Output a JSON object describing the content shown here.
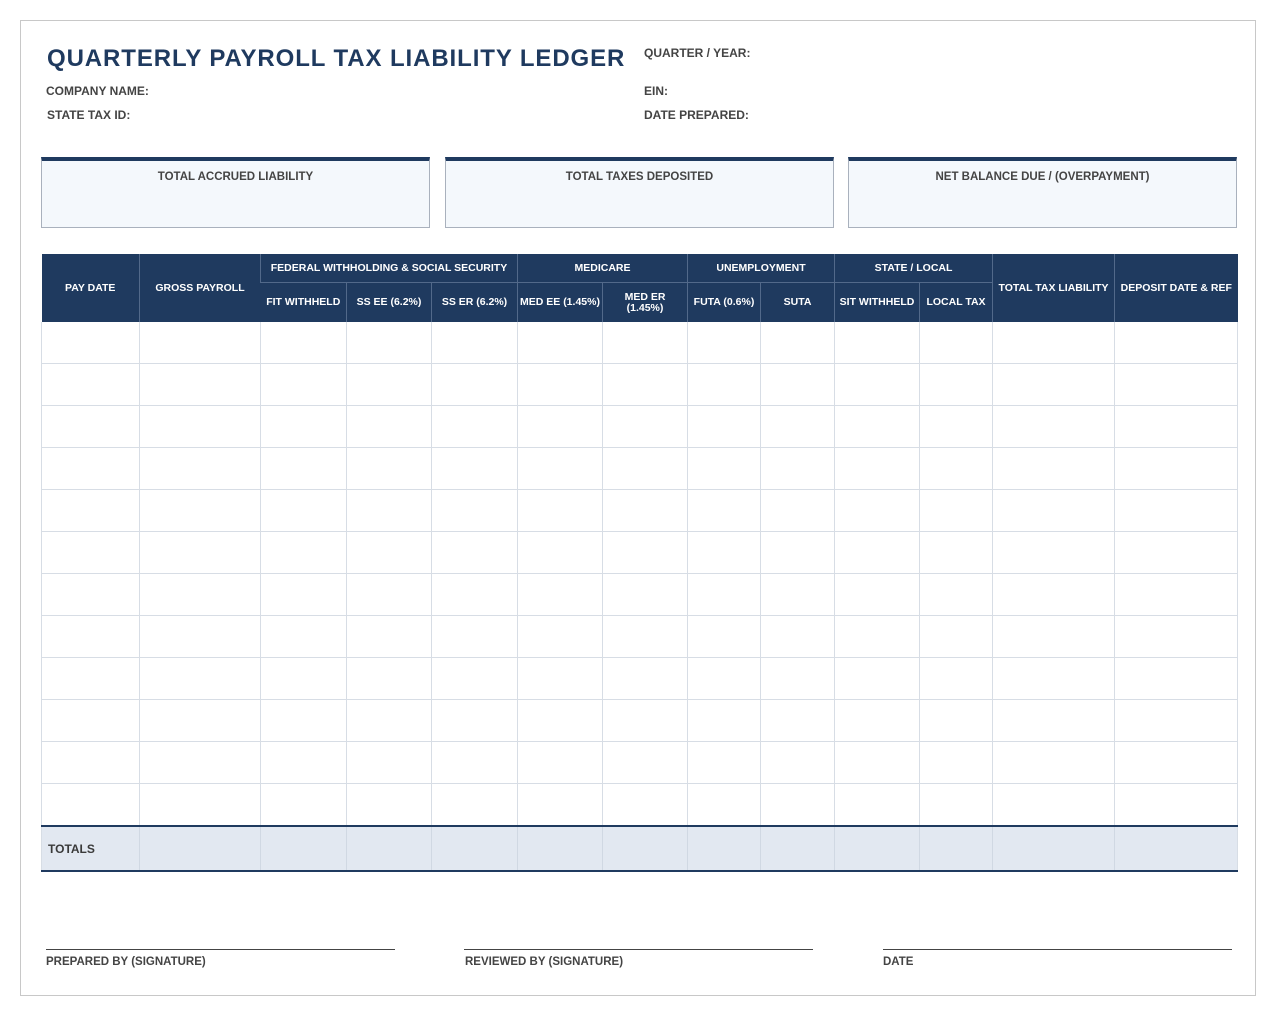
{
  "title": "QUARTERLY PAYROLL TAX LIABILITY LEDGER",
  "header_fields": {
    "quarter_year": "QUARTER / YEAR:",
    "company_name": "COMPANY NAME:",
    "ein": "EIN:",
    "state_tax_id": "STATE TAX ID:",
    "date_prepared": "DATE PREPARED:"
  },
  "summary_boxes": [
    {
      "label": "TOTAL ACCRUED LIABILITY",
      "value": ""
    },
    {
      "label": "TOTAL TAXES DEPOSITED",
      "value": ""
    },
    {
      "label": "NET BALANCE DUE / (OVERPAYMENT)",
      "value": ""
    }
  ],
  "table": {
    "groups": {
      "pay_date": "PAY DATE",
      "gross_payroll": "GROSS PAYROLL",
      "federal": "FEDERAL WITHHOLDING & SOCIAL SECURITY",
      "medicare": "MEDICARE",
      "unemployment": "UNEMPLOYMENT",
      "state_local": "STATE / LOCAL",
      "total_tax_liability": "TOTAL TAX LIABILITY",
      "deposit_date_ref": "DEPOSIT DATE & REF"
    },
    "subcolumns": {
      "fit_withheld": "FIT WITHHELD",
      "ss_ee": "SS EE (6.2%)",
      "ss_er": "SS ER (6.2%)",
      "med_ee": "MED EE (1.45%)",
      "med_er": "MED ER (1.45%)",
      "futa": "FUTA (0.6%)",
      "suta": "SUTA",
      "sit_withheld": "SIT WITHHELD",
      "local_tax": "LOCAL TAX"
    },
    "rows": [
      [
        "",
        "",
        "",
        "",
        "",
        "",
        "",
        "",
        "",
        "",
        "",
        "",
        ""
      ],
      [
        "",
        "",
        "",
        "",
        "",
        "",
        "",
        "",
        "",
        "",
        "",
        "",
        ""
      ],
      [
        "",
        "",
        "",
        "",
        "",
        "",
        "",
        "",
        "",
        "",
        "",
        "",
        ""
      ],
      [
        "",
        "",
        "",
        "",
        "",
        "",
        "",
        "",
        "",
        "",
        "",
        "",
        ""
      ],
      [
        "",
        "",
        "",
        "",
        "",
        "",
        "",
        "",
        "",
        "",
        "",
        "",
        ""
      ],
      [
        "",
        "",
        "",
        "",
        "",
        "",
        "",
        "",
        "",
        "",
        "",
        "",
        ""
      ],
      [
        "",
        "",
        "",
        "",
        "",
        "",
        "",
        "",
        "",
        "",
        "",
        "",
        ""
      ],
      [
        "",
        "",
        "",
        "",
        "",
        "",
        "",
        "",
        "",
        "",
        "",
        "",
        ""
      ],
      [
        "",
        "",
        "",
        "",
        "",
        "",
        "",
        "",
        "",
        "",
        "",
        "",
        ""
      ],
      [
        "",
        "",
        "",
        "",
        "",
        "",
        "",
        "",
        "",
        "",
        "",
        "",
        ""
      ],
      [
        "",
        "",
        "",
        "",
        "",
        "",
        "",
        "",
        "",
        "",
        "",
        "",
        ""
      ],
      [
        "",
        "",
        "",
        "",
        "",
        "",
        "",
        "",
        "",
        "",
        "",
        "",
        ""
      ]
    ],
    "totals_label": "TOTALS"
  },
  "signatures": {
    "prepared_by": "PREPARED BY (SIGNATURE)",
    "reviewed_by": "REVIEWED BY (SIGNATURE)",
    "date": "DATE"
  },
  "colors": {
    "header_navy": "#1f3a5f",
    "totals_fill": "#e2e8f1",
    "summary_fill": "#f4f8fc"
  }
}
